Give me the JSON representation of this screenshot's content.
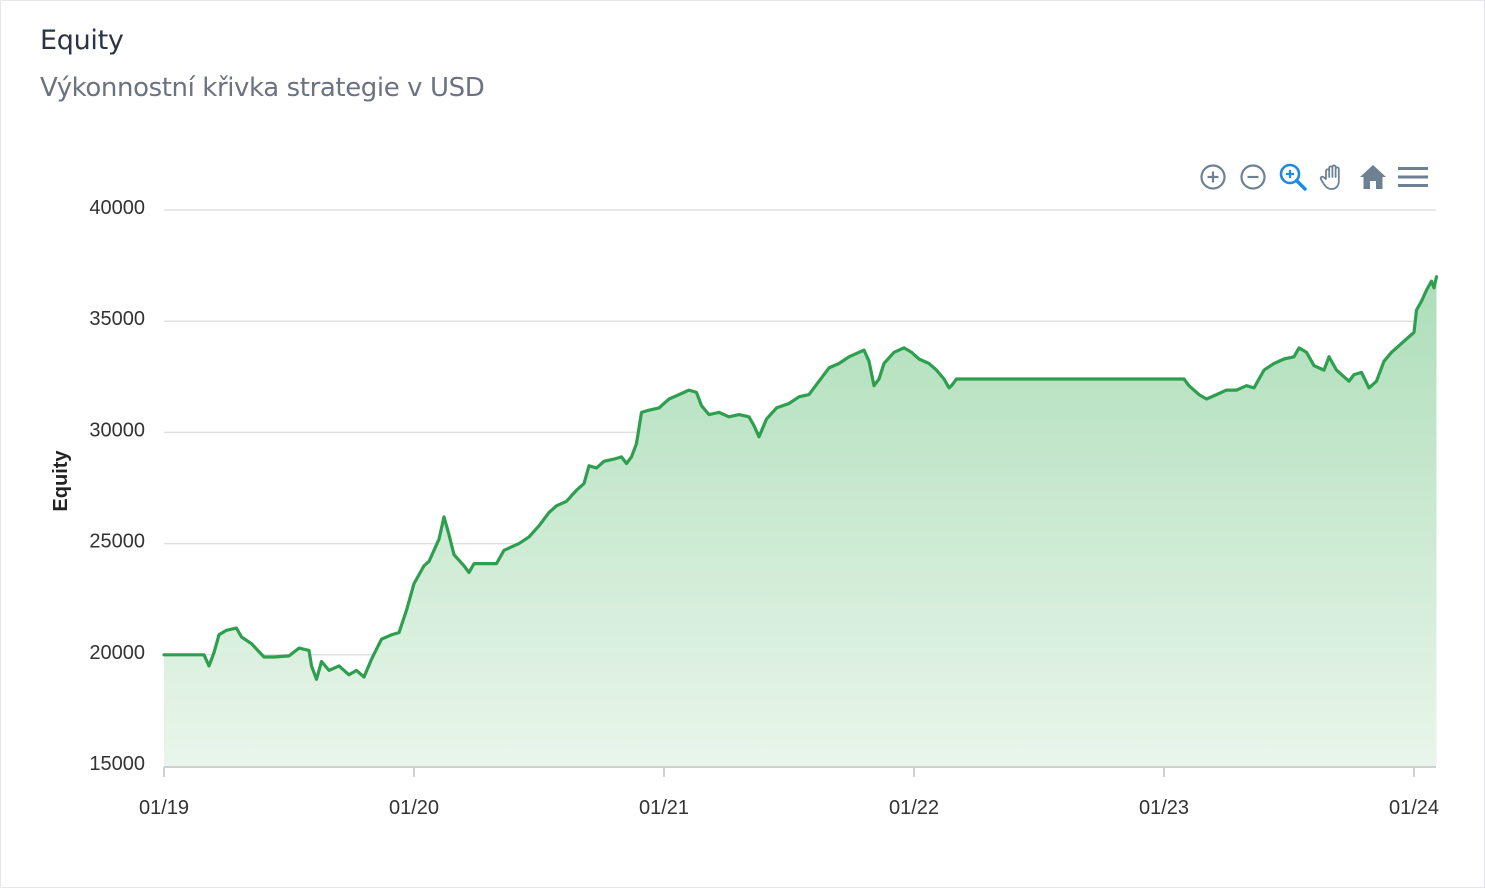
{
  "header": {
    "title": "Equity",
    "subtitle": "Výkonnostní křivka strategie v USD"
  },
  "toolbar": {
    "items": [
      {
        "icon": "zoom-in-icon"
      },
      {
        "icon": "zoom-out-icon"
      },
      {
        "icon": "selection-zoom-icon",
        "active": true
      },
      {
        "icon": "pan-hand-icon"
      },
      {
        "icon": "reset-home-icon"
      },
      {
        "icon": "menu-icon"
      }
    ]
  },
  "colors": {
    "line": "#2e9e4f",
    "area_top": "#a9dcb5",
    "area_bottom": "#e8f5ea",
    "grid": "#e0e0e0",
    "active_tool": "#1e88e5",
    "tool": "#6e8192"
  },
  "chart_data": {
    "type": "area",
    "ylabel": "Equity",
    "xlabel": "",
    "ylim": [
      15000,
      40000
    ],
    "yticks": [
      "15000",
      "20000",
      "25000",
      "30000",
      "35000",
      "40000"
    ],
    "xticks": [
      {
        "label": "01/19",
        "t": 0
      },
      {
        "label": "01/20",
        "t": 1
      },
      {
        "label": "01/21",
        "t": 2
      },
      {
        "label": "01/22",
        "t": 3
      },
      {
        "label": "01/23",
        "t": 4
      },
      {
        "label": "01/24",
        "t": 5
      }
    ],
    "xlim": [
      0,
      5.09
    ],
    "grid": true,
    "series": [
      {
        "points": [
          [
            0.0,
            20000
          ],
          [
            0.16,
            20000
          ],
          [
            0.18,
            19500
          ],
          [
            0.2,
            20100
          ],
          [
            0.22,
            20900
          ],
          [
            0.25,
            21100
          ],
          [
            0.29,
            21200
          ],
          [
            0.31,
            20800
          ],
          [
            0.35,
            20500
          ],
          [
            0.4,
            19900
          ],
          [
            0.44,
            19900
          ],
          [
            0.5,
            19950
          ],
          [
            0.54,
            20300
          ],
          [
            0.58,
            20200
          ],
          [
            0.59,
            19500
          ],
          [
            0.61,
            18900
          ],
          [
            0.63,
            19700
          ],
          [
            0.66,
            19300
          ],
          [
            0.7,
            19500
          ],
          [
            0.74,
            19100
          ],
          [
            0.77,
            19300
          ],
          [
            0.8,
            19000
          ],
          [
            0.83,
            19800
          ],
          [
            0.87,
            20700
          ],
          [
            0.91,
            20900
          ],
          [
            0.94,
            21000
          ],
          [
            0.97,
            22000
          ],
          [
            1.0,
            23200
          ],
          [
            1.04,
            24000
          ],
          [
            1.06,
            24200
          ],
          [
            1.08,
            24700
          ],
          [
            1.1,
            25200
          ],
          [
            1.12,
            26200
          ],
          [
            1.14,
            25400
          ],
          [
            1.16,
            24500
          ],
          [
            1.2,
            24000
          ],
          [
            1.22,
            23700
          ],
          [
            1.24,
            24100
          ],
          [
            1.27,
            24100
          ],
          [
            1.33,
            24100
          ],
          [
            1.36,
            24700
          ],
          [
            1.42,
            25000
          ],
          [
            1.46,
            25300
          ],
          [
            1.5,
            25800
          ],
          [
            1.54,
            26400
          ],
          [
            1.57,
            26700
          ],
          [
            1.61,
            26900
          ],
          [
            1.65,
            27400
          ],
          [
            1.68,
            27700
          ],
          [
            1.7,
            28500
          ],
          [
            1.73,
            28400
          ],
          [
            1.76,
            28700
          ],
          [
            1.8,
            28800
          ],
          [
            1.83,
            28900
          ],
          [
            1.85,
            28600
          ],
          [
            1.87,
            28900
          ],
          [
            1.89,
            29500
          ],
          [
            1.91,
            30900
          ],
          [
            1.94,
            31000
          ],
          [
            1.98,
            31100
          ],
          [
            2.02,
            31500
          ],
          [
            2.06,
            31700
          ],
          [
            2.1,
            31900
          ],
          [
            2.13,
            31800
          ],
          [
            2.15,
            31200
          ],
          [
            2.18,
            30800
          ],
          [
            2.22,
            30900
          ],
          [
            2.26,
            30700
          ],
          [
            2.3,
            30800
          ],
          [
            2.34,
            30700
          ],
          [
            2.36,
            30300
          ],
          [
            2.38,
            29800
          ],
          [
            2.41,
            30600
          ],
          [
            2.45,
            31100
          ],
          [
            2.5,
            31300
          ],
          [
            2.54,
            31600
          ],
          [
            2.58,
            31700
          ],
          [
            2.62,
            32300
          ],
          [
            2.66,
            32900
          ],
          [
            2.7,
            33100
          ],
          [
            2.74,
            33400
          ],
          [
            2.78,
            33600
          ],
          [
            2.8,
            33700
          ],
          [
            2.82,
            33200
          ],
          [
            2.84,
            32100
          ],
          [
            2.86,
            32400
          ],
          [
            2.88,
            33100
          ],
          [
            2.92,
            33600
          ],
          [
            2.96,
            33800
          ],
          [
            2.99,
            33600
          ],
          [
            3.02,
            33300
          ],
          [
            3.06,
            33100
          ],
          [
            3.09,
            32800
          ],
          [
            3.12,
            32400
          ],
          [
            3.14,
            32000
          ],
          [
            3.15,
            32100
          ],
          [
            3.17,
            32400
          ],
          [
            3.45,
            32400
          ],
          [
            3.8,
            32400
          ],
          [
            4.08,
            32400
          ],
          [
            4.1,
            32100
          ],
          [
            4.14,
            31700
          ],
          [
            4.17,
            31500
          ],
          [
            4.21,
            31700
          ],
          [
            4.25,
            31900
          ],
          [
            4.29,
            31900
          ],
          [
            4.33,
            32100
          ],
          [
            4.36,
            32000
          ],
          [
            4.4,
            32800
          ],
          [
            4.44,
            33100
          ],
          [
            4.48,
            33300
          ],
          [
            4.52,
            33400
          ],
          [
            4.54,
            33800
          ],
          [
            4.57,
            33600
          ],
          [
            4.6,
            33000
          ],
          [
            4.64,
            32800
          ],
          [
            4.66,
            33400
          ],
          [
            4.69,
            32800
          ],
          [
            4.72,
            32500
          ],
          [
            4.74,
            32300
          ],
          [
            4.76,
            32600
          ],
          [
            4.79,
            32700
          ],
          [
            4.82,
            32000
          ],
          [
            4.85,
            32300
          ],
          [
            4.88,
            33200
          ],
          [
            4.91,
            33600
          ],
          [
            4.94,
            33900
          ],
          [
            4.97,
            34200
          ],
          [
            5.0,
            34500
          ],
          [
            5.01,
            35500
          ],
          [
            5.03,
            35900
          ],
          [
            5.05,
            36400
          ],
          [
            5.07,
            36800
          ],
          [
            5.08,
            36500
          ],
          [
            5.09,
            37000
          ]
        ]
      }
    ]
  }
}
